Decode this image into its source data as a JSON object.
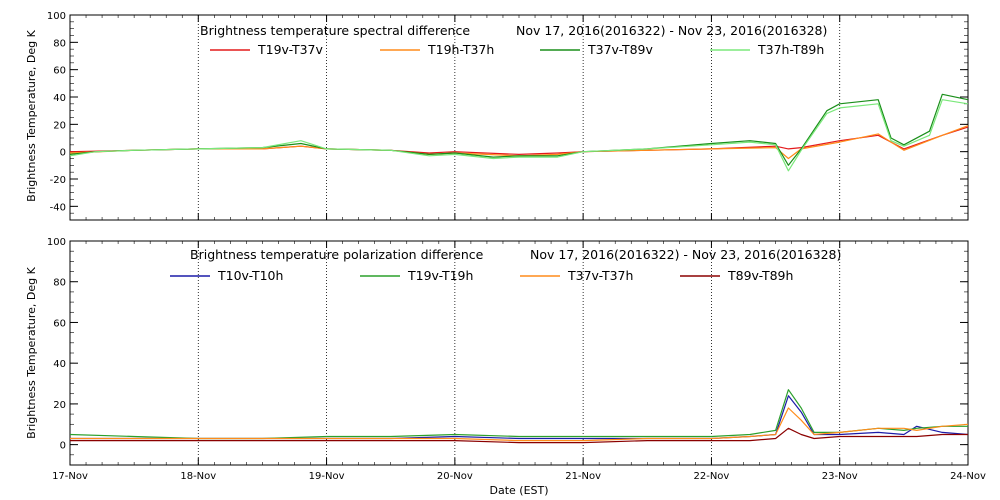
{
  "chart_data": [
    {
      "type": "line",
      "title": "Brightness temperature spectral difference",
      "date_range": "Nov 17, 2016(2016322) - Nov 23, 2016(2016328)",
      "ylabel": "Brightness Temperature, Deg K",
      "ylim": [
        -50,
        100
      ],
      "yticks": [
        -40,
        -20,
        0,
        20,
        40,
        60,
        80,
        100
      ],
      "xlim": [
        17,
        24
      ],
      "grid": true,
      "legend_placement": "top",
      "series": [
        {
          "name": "T19v-T37v",
          "color": "#e41a1c",
          "x": [
            17,
            17.5,
            18,
            18.5,
            18.8,
            19,
            19.5,
            19.8,
            20,
            20.5,
            20.8,
            21,
            21.5,
            22,
            22.5,
            22.6,
            22.7,
            23,
            23.3,
            23.5,
            23.8,
            24
          ],
          "y": [
            0,
            1,
            2,
            2,
            4,
            2,
            1,
            -1,
            0,
            -2,
            -1,
            0,
            1,
            2,
            4,
            2,
            3,
            8,
            12,
            2,
            12,
            18
          ]
        },
        {
          "name": "T19h-T37h",
          "color": "#ff8c1a",
          "x": [
            17,
            17.5,
            18,
            18.5,
            18.8,
            19,
            19.5,
            19.8,
            20,
            20.5,
            20.8,
            21,
            21.5,
            22,
            22.5,
            22.6,
            22.7,
            23,
            23.3,
            23.5,
            23.8,
            24
          ],
          "y": [
            -1,
            1,
            2,
            2,
            4,
            2,
            1,
            -2,
            -1,
            -3,
            -2,
            0,
            1,
            2,
            3,
            -5,
            2,
            7,
            13,
            1,
            12,
            19
          ]
        },
        {
          "name": "T37v-T89v",
          "color": "#1a8f1a",
          "x": [
            17,
            17.2,
            17.5,
            18,
            18.5,
            18.8,
            19,
            19.5,
            19.8,
            20,
            20.3,
            20.5,
            20.8,
            21,
            21.5,
            22,
            22.3,
            22.5,
            22.6,
            22.7,
            22.9,
            23.0,
            23.3,
            23.4,
            23.5,
            23.7,
            23.8,
            24
          ],
          "y": [
            -2,
            0,
            1,
            2,
            3,
            6,
            2,
            1,
            -2,
            -1,
            -4,
            -3,
            -3,
            0,
            2,
            6,
            8,
            6,
            -10,
            2,
            30,
            35,
            38,
            10,
            5,
            15,
            42,
            38
          ]
        },
        {
          "name": "T37h-T89h",
          "color": "#7be87b",
          "x": [
            17,
            17.2,
            17.5,
            18,
            18.5,
            18.8,
            19,
            19.5,
            19.8,
            20,
            20.3,
            20.5,
            20.8,
            21,
            21.5,
            22,
            22.3,
            22.5,
            22.6,
            22.7,
            22.9,
            23.0,
            23.3,
            23.4,
            23.5,
            23.7,
            23.8,
            24
          ],
          "y": [
            -3,
            0,
            1,
            2,
            3,
            8,
            2,
            1,
            -3,
            -2,
            -5,
            -4,
            -4,
            0,
            2,
            5,
            7,
            5,
            -14,
            1,
            28,
            32,
            35,
            8,
            4,
            12,
            38,
            35
          ]
        }
      ]
    },
    {
      "type": "line",
      "title": "Brightness temperature polarization difference",
      "date_range": "Nov 17, 2016(2016322) - Nov 23, 2016(2016328)",
      "ylabel": "Brightness Temperature, Deg K",
      "xlabel": "Date (EST)",
      "ylim": [
        -10,
        100
      ],
      "yticks": [
        0,
        20,
        40,
        60,
        80,
        100
      ],
      "xlim": [
        17,
        24
      ],
      "xticks": [
        "17-Nov",
        "18-Nov",
        "19-Nov",
        "20-Nov",
        "21-Nov",
        "22-Nov",
        "23-Nov",
        "24-Nov"
      ],
      "grid": true,
      "legend_placement": "top",
      "series": [
        {
          "name": "T10v-T10h",
          "color": "#1c1ca8",
          "x": [
            17,
            17.5,
            18,
            18.5,
            19,
            19.5,
            20,
            20.5,
            21,
            21.5,
            22,
            22.3,
            22.5,
            22.6,
            22.7,
            22.8,
            23.0,
            23.3,
            23.5,
            23.6,
            23.8,
            24
          ],
          "y": [
            3,
            3,
            3,
            3,
            3,
            3,
            4,
            3,
            3,
            3,
            3,
            4,
            5,
            24,
            16,
            5,
            5,
            6,
            5,
            9,
            6,
            5
          ]
        },
        {
          "name": "T19v-T19h",
          "color": "#2ca02c",
          "x": [
            17,
            17.5,
            18,
            18.5,
            19,
            19.5,
            20,
            20.5,
            21,
            21.5,
            22,
            22.3,
            22.5,
            22.6,
            22.7,
            22.8,
            23.0,
            23.3,
            23.5,
            23.6,
            23.8,
            24
          ],
          "y": [
            5,
            4,
            3,
            3,
            4,
            4,
            5,
            4,
            4,
            4,
            4,
            5,
            7,
            27,
            18,
            6,
            6,
            8,
            7,
            8,
            9,
            9
          ]
        },
        {
          "name": "T37v-T37h",
          "color": "#ff8c1a",
          "x": [
            17,
            17.5,
            18,
            18.5,
            19,
            19.5,
            20,
            20.5,
            21,
            21.5,
            22,
            22.3,
            22.5,
            22.6,
            22.7,
            22.8,
            23.0,
            23.3,
            23.5,
            23.6,
            23.8,
            24
          ],
          "y": [
            3,
            3,
            3,
            3,
            3,
            3,
            3,
            2,
            2,
            3,
            3,
            4,
            5,
            18,
            12,
            5,
            6,
            8,
            8,
            7,
            9,
            10
          ]
        },
        {
          "name": "T89v-T89h",
          "color": "#8b0000",
          "x": [
            17,
            17.5,
            18,
            18.5,
            19,
            19.5,
            20,
            20.5,
            21,
            21.5,
            22,
            22.3,
            22.5,
            22.6,
            22.7,
            22.8,
            23.0,
            23.3,
            23.5,
            23.6,
            23.8,
            24
          ],
          "y": [
            2,
            2,
            2,
            2,
            2,
            2,
            2,
            1,
            1,
            2,
            2,
            2,
            3,
            8,
            5,
            3,
            4,
            4,
            4,
            4,
            5,
            5
          ]
        }
      ]
    }
  ]
}
